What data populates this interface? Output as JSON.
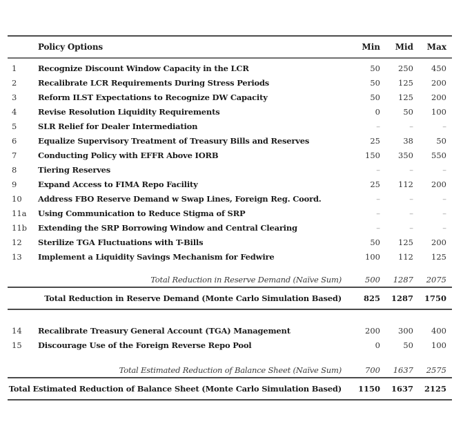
{
  "table": {
    "header": {
      "policy": "Policy Options",
      "min": "Min",
      "mid": "Mid",
      "max": "Max"
    },
    "section1": {
      "rows": [
        {
          "id": "1",
          "label": "Recognize Discount Window Capacity in the LCR",
          "min": "50",
          "mid": "250",
          "max": "450"
        },
        {
          "id": "2",
          "label": "Recalibrate LCR Requirements During Stress Periods",
          "min": "50",
          "mid": "125",
          "max": "200"
        },
        {
          "id": "3",
          "label": "Reform ILST Expectations to Recognize DW Capacity",
          "min": "50",
          "mid": "125",
          "max": "200"
        },
        {
          "id": "4",
          "label": "Revise Resolution Liquidity Requirements",
          "min": "0",
          "mid": "50",
          "max": "100"
        },
        {
          "id": "5",
          "label": "SLR Relief for Dealer Intermediation",
          "min": "–",
          "mid": "–",
          "max": "–"
        },
        {
          "id": "6",
          "label": "Equalize Supervisory Treatment of Treasury Bills and Reserves",
          "min": "25",
          "mid": "38",
          "max": "50"
        },
        {
          "id": "7",
          "label": "Conducting Policy with EFFR Above IORB",
          "min": "150",
          "mid": "350",
          "max": "550"
        },
        {
          "id": "8",
          "label": "Tiering Reserves",
          "min": "–",
          "mid": "–",
          "max": "–"
        },
        {
          "id": "9",
          "label": "Expand Access to FIMA Repo Facility",
          "min": "25",
          "mid": "112",
          "max": "200"
        },
        {
          "id": "10",
          "label": "Address FBO Reserve Demand w Swap Lines, Foreign Reg. Coord.",
          "min": "–",
          "mid": "–",
          "max": "–"
        },
        {
          "id": "11a",
          "label": "Using Communication to Reduce Stigma of SRP",
          "min": "–",
          "mid": "–",
          "max": "–"
        },
        {
          "id": "11b",
          "label": "Extending the SRP Borrowing Window and Central Clearing",
          "min": "–",
          "mid": "–",
          "max": "–"
        },
        {
          "id": "12",
          "label": "Sterilize TGA Fluctuations with T-Bills",
          "min": "50",
          "mid": "125",
          "max": "200"
        },
        {
          "id": "13",
          "label": "Implement a Liquidity Savings Mechanism for Fedwire",
          "min": "100",
          "mid": "112",
          "max": "125"
        }
      ],
      "naive": {
        "label": "Total Reduction in Reserve Demand (Naïve Sum)",
        "min": "500",
        "mid": "1287",
        "max": "2075"
      },
      "monte_carlo": {
        "label": "Total Reduction in Reserve Demand (Monte Carlo Simulation Based)",
        "min": "825",
        "mid": "1287",
        "max": "1750"
      }
    },
    "section2": {
      "rows": [
        {
          "id": "14",
          "label": "Recalibrate Treasury General Account (TGA) Management",
          "min": "200",
          "mid": "300",
          "max": "400"
        },
        {
          "id": "15",
          "label": "Discourage Use of the Foreign Reverse Repo Pool",
          "min": "0",
          "mid": "50",
          "max": "100"
        }
      ],
      "naive": {
        "label": "Total Estimated Reduction of Balance Sheet (Naïve Sum)",
        "min": "700",
        "mid": "1637",
        "max": "2575"
      },
      "monte_carlo": {
        "label": "Total Estimated Reduction of Balance Sheet (Monte Carlo Simulation Based)",
        "min": "1150",
        "mid": "1637",
        "max": "2125"
      }
    },
    "colors": {
      "rule": "#4a4a4a",
      "text": "#1c1c1c",
      "dash": "#9a9a9a"
    }
  }
}
